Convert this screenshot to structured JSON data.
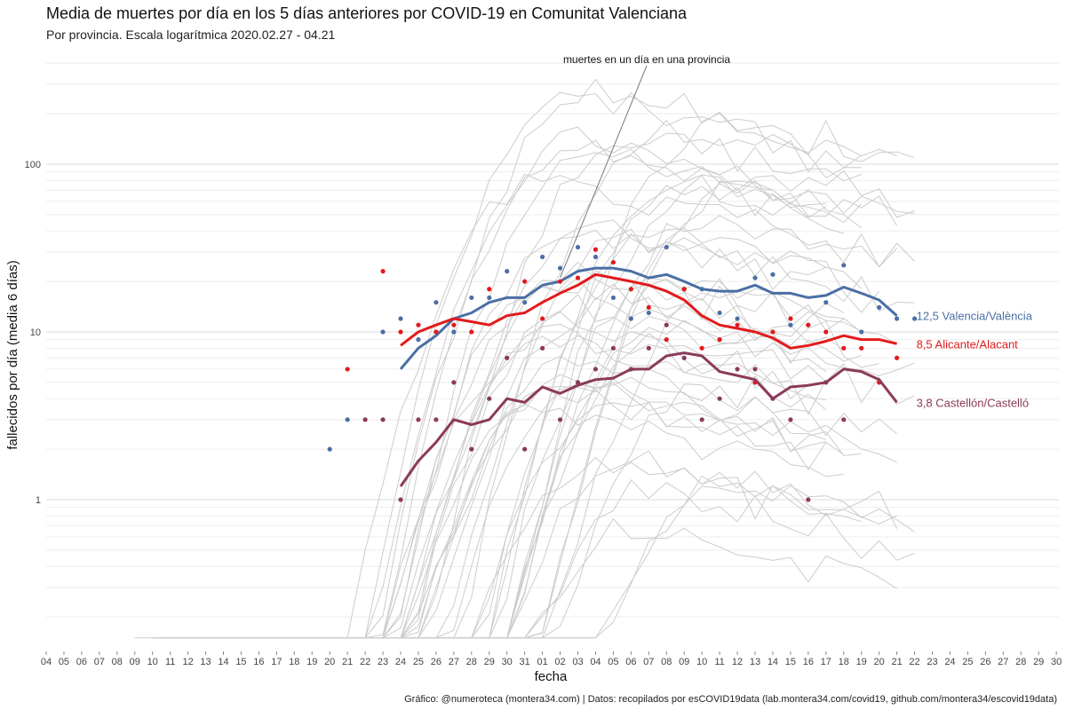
{
  "title": "Media de muertes por día en los 5 días anteriores por COVID-19 en Comunitat Valenciana",
  "subtitle": "Por provincia. Escala logarítmica  2020.02.27 - 04.21",
  "caption": "Gráfico: @numeroteca (montera34.com) | Datos: recopilados por esCOVID19data (lab.montera34.com/covid19, github.com/montera34/escovid19data)",
  "chart_data": {
    "type": "line",
    "title": "Media de muertes por día en los 5 días anteriores por COVID-19 en Comunitat Valenciana",
    "subtitle": "Por provincia. Escala logarítmica  2020.02.27 - 04.21",
    "xlabel": "fecha",
    "ylabel": "fallecidos por día (media 6 días)",
    "y_scale": "log",
    "ylim": [
      0.12,
      450
    ],
    "y_ticks": [
      1,
      10,
      100
    ],
    "y_tick_labels": [
      "1",
      "10",
      "100"
    ],
    "x_tick_labels": [
      "04",
      "05",
      "06",
      "07",
      "08",
      "09",
      "10",
      "11",
      "12",
      "13",
      "14",
      "15",
      "16",
      "17",
      "18",
      "19",
      "20",
      "21",
      "22",
      "23",
      "24",
      "25",
      "26",
      "27",
      "28",
      "29",
      "30",
      "31",
      "01",
      "02",
      "03",
      "04",
      "05",
      "06",
      "07",
      "08",
      "09",
      "10",
      "11",
      "12",
      "13",
      "14",
      "15",
      "16",
      "17",
      "18",
      "19",
      "20",
      "21",
      "22",
      "23",
      "24",
      "25",
      "26",
      "27",
      "28",
      "29",
      "30"
    ],
    "grid": true,
    "legend": "direct labels at line ends",
    "colors": {
      "valencia": "#4a6fa5",
      "alicante": "#e31a1c",
      "castellon": "#8b3a5a",
      "context": "#cccccc"
    },
    "annotation": {
      "text": "muertes en un día en una provincia",
      "point_x_index": 29,
      "point_y": 21
    },
    "series": [
      {
        "name": "12,5 Valencia/València",
        "start_index": 20,
        "values": [
          6,
          8,
          9.5,
          12,
          13,
          15,
          16,
          16,
          19,
          20,
          23,
          24,
          24,
          23,
          21,
          22,
          20,
          18,
          17.5,
          17.5,
          19,
          17,
          17,
          16,
          16.5,
          18.5,
          17,
          15.5,
          12.5
        ],
        "points": [
          [
            16,
            2
          ],
          [
            17,
            3
          ],
          [
            19,
            10
          ],
          [
            20,
            12
          ],
          [
            21,
            9
          ],
          [
            22,
            15
          ],
          [
            23,
            10
          ],
          [
            24,
            16
          ],
          [
            25,
            16
          ],
          [
            26,
            23
          ],
          [
            27,
            15
          ],
          [
            28,
            28
          ],
          [
            29,
            24
          ],
          [
            30,
            32
          ],
          [
            31,
            28
          ],
          [
            32,
            16
          ],
          [
            33,
            12
          ],
          [
            34,
            13
          ],
          [
            35,
            32
          ],
          [
            36,
            18
          ],
          [
            37,
            18
          ],
          [
            38,
            13
          ],
          [
            39,
            12
          ],
          [
            40,
            21
          ],
          [
            41,
            22
          ],
          [
            42,
            11
          ],
          [
            43,
            11
          ],
          [
            44,
            15
          ],
          [
            45,
            25
          ],
          [
            46,
            10
          ],
          [
            47,
            14
          ],
          [
            48,
            12
          ],
          [
            49,
            12
          ]
        ]
      },
      {
        "name": "8,5 Alicante/Alacant",
        "start_index": 20,
        "values": [
          8.3,
          10,
          11,
          12,
          11.5,
          11,
          12.5,
          13,
          15,
          17,
          19,
          22,
          21,
          20,
          19,
          17.5,
          15.5,
          12.5,
          11,
          10.5,
          10,
          9.2,
          8,
          8.3,
          8.8,
          9.5,
          9,
          9,
          8.5
        ],
        "points": [
          [
            17,
            6
          ],
          [
            19,
            23
          ],
          [
            20,
            10
          ],
          [
            21,
            11
          ],
          [
            22,
            10
          ],
          [
            23,
            11
          ],
          [
            24,
            10
          ],
          [
            25,
            18
          ],
          [
            27,
            20
          ],
          [
            28,
            12
          ],
          [
            29,
            20
          ],
          [
            30,
            21
          ],
          [
            31,
            31
          ],
          [
            32,
            26
          ],
          [
            33,
            18
          ],
          [
            34,
            14
          ],
          [
            35,
            9
          ],
          [
            36,
            18
          ],
          [
            37,
            8
          ],
          [
            38,
            9
          ],
          [
            39,
            11
          ],
          [
            40,
            5
          ],
          [
            41,
            10
          ],
          [
            42,
            12
          ],
          [
            43,
            11
          ],
          [
            44,
            10
          ],
          [
            45,
            8
          ],
          [
            46,
            8
          ],
          [
            47,
            5
          ],
          [
            48,
            7
          ]
        ]
      },
      {
        "name": "3,8 Castellón/Castelló",
        "start_index": 20,
        "values": [
          1.2,
          1.7,
          2.2,
          3,
          2.8,
          3,
          4,
          3.8,
          4.7,
          4.3,
          4.8,
          5.2,
          5.3,
          6,
          6,
          7.2,
          7.5,
          7.2,
          5.8,
          5.5,
          5.2,
          4,
          4.7,
          4.8,
          5,
          6,
          5.8,
          5.2,
          3.8
        ],
        "points": [
          [
            18,
            3
          ],
          [
            19,
            3
          ],
          [
            20,
            1
          ],
          [
            21,
            3
          ],
          [
            22,
            3
          ],
          [
            23,
            5
          ],
          [
            24,
            2
          ],
          [
            25,
            4
          ],
          [
            26,
            7
          ],
          [
            27,
            2
          ],
          [
            28,
            8
          ],
          [
            29,
            3
          ],
          [
            30,
            5
          ],
          [
            31,
            6
          ],
          [
            32,
            8
          ],
          [
            33,
            6
          ],
          [
            34,
            8
          ],
          [
            35,
            11
          ],
          [
            36,
            7
          ],
          [
            37,
            3
          ],
          [
            38,
            4
          ],
          [
            39,
            6
          ],
          [
            40,
            6
          ],
          [
            41,
            4
          ],
          [
            42,
            3
          ],
          [
            43,
            1
          ],
          [
            44,
            5
          ],
          [
            45,
            3
          ]
        ]
      }
    ]
  }
}
